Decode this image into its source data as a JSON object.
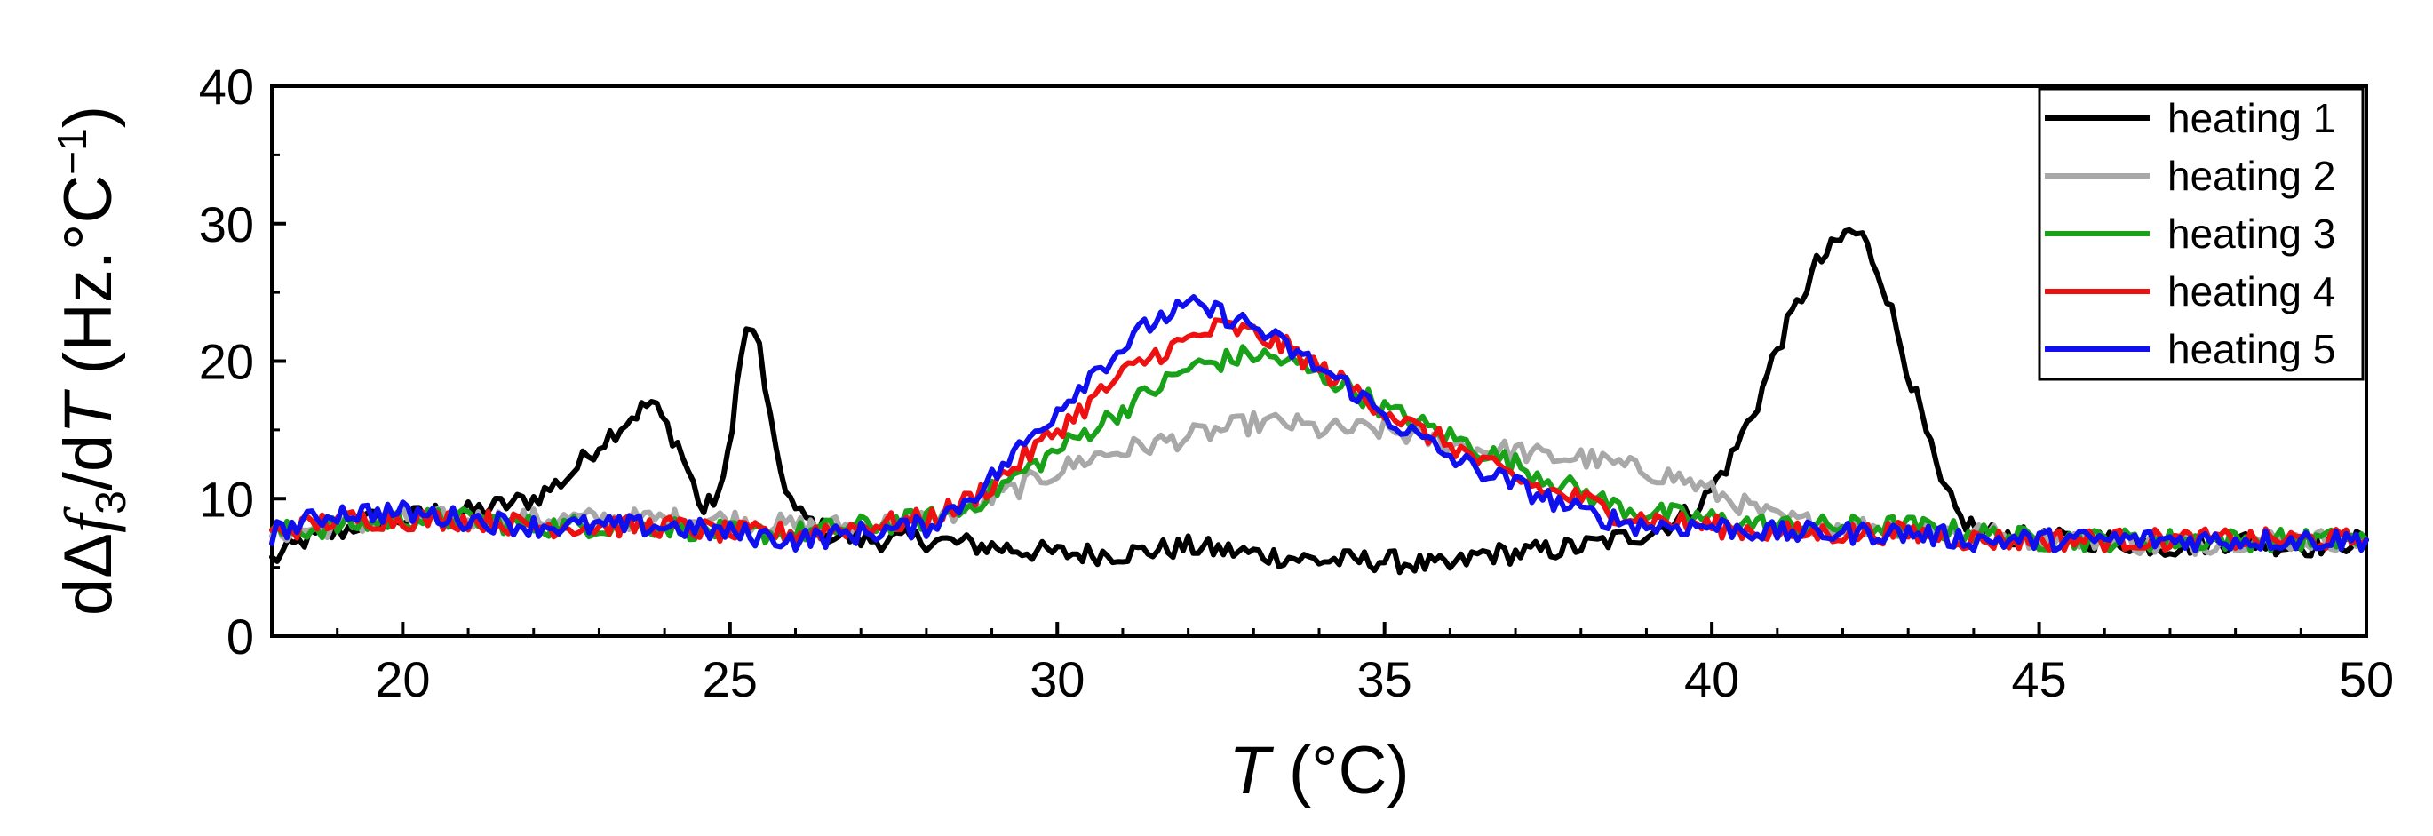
{
  "chart_data": {
    "type": "line",
    "xlabel": {
      "symbol": "T",
      "unit": "(°C)"
    },
    "ylabel": {
      "text": "dΔf3/dT (Hz.°C−1)",
      "parts": {
        "d1": "d",
        "delta": "Δ",
        "f": "f",
        "sub": "3",
        "slash": "/d",
        "T": "T",
        "unit": " (Hz.°C",
        "sup": "−1",
        "close": ")"
      }
    },
    "xlim": [
      18,
      50
    ],
    "ylim": [
      0,
      40
    ],
    "xticks": [
      20,
      25,
      30,
      35,
      40,
      45,
      50
    ],
    "yticks": [
      0,
      10,
      20,
      30,
      40
    ],
    "legend_position": "top-right",
    "series": [
      {
        "name": "heating 1",
        "color": "#000000",
        "points": [
          [
            18,
            5.5
          ],
          [
            18.5,
            7
          ],
          [
            19,
            7.5
          ],
          [
            19.5,
            8.5
          ],
          [
            20,
            8.5
          ],
          [
            20.5,
            9
          ],
          [
            21,
            9
          ],
          [
            21.5,
            9.5
          ],
          [
            22,
            10
          ],
          [
            22.5,
            11.5
          ],
          [
            23,
            14
          ],
          [
            23.5,
            16
          ],
          [
            23.8,
            17
          ],
          [
            24.2,
            14
          ],
          [
            24.6,
            9
          ],
          [
            24.9,
            11
          ],
          [
            25.1,
            18
          ],
          [
            25.25,
            22.5
          ],
          [
            25.45,
            21
          ],
          [
            25.7,
            13
          ],
          [
            26,
            9
          ],
          [
            26.5,
            7.5
          ],
          [
            27,
            7
          ],
          [
            28,
            7
          ],
          [
            29,
            6.5
          ],
          [
            30,
            6
          ],
          [
            31,
            6
          ],
          [
            32,
            6.5
          ],
          [
            33,
            6
          ],
          [
            34,
            5.5
          ],
          [
            35,
            5.5
          ],
          [
            36,
            5
          ],
          [
            36.5,
            6
          ],
          [
            37,
            6
          ],
          [
            38,
            6.5
          ],
          [
            38.5,
            7
          ],
          [
            39,
            7.5
          ],
          [
            39.5,
            8.5
          ],
          [
            39.9,
            10
          ],
          [
            40.3,
            13
          ],
          [
            40.7,
            17
          ],
          [
            41,
            21
          ],
          [
            41.3,
            24
          ],
          [
            41.6,
            27
          ],
          [
            41.9,
            28.5
          ],
          [
            42.1,
            29.5
          ],
          [
            42.3,
            29
          ],
          [
            42.6,
            26
          ],
          [
            42.9,
            21
          ],
          [
            43.2,
            16
          ],
          [
            43.5,
            11
          ],
          [
            43.8,
            8.5
          ],
          [
            44.2,
            7.5
          ],
          [
            45,
            7
          ],
          [
            46,
            7
          ],
          [
            47,
            6.5
          ],
          [
            48,
            7
          ],
          [
            49,
            6.5
          ],
          [
            50,
            7
          ]
        ]
      },
      {
        "name": "heating 2",
        "color": "#a8a8a8",
        "points": [
          [
            18,
            7.5
          ],
          [
            19,
            8
          ],
          [
            20,
            8.5
          ],
          [
            21,
            8.5
          ],
          [
            22,
            8.5
          ],
          [
            23,
            8.5
          ],
          [
            24,
            8.5
          ],
          [
            25,
            8.5
          ],
          [
            26,
            8
          ],
          [
            27,
            8
          ],
          [
            28,
            8.5
          ],
          [
            28.5,
            9
          ],
          [
            29,
            10
          ],
          [
            29.5,
            11
          ],
          [
            30,
            12
          ],
          [
            30.5,
            13
          ],
          [
            31,
            13.5
          ],
          [
            31.5,
            14
          ],
          [
            32,
            14.5
          ],
          [
            32.5,
            15
          ],
          [
            33,
            15.5
          ],
          [
            33.5,
            15.5
          ],
          [
            34,
            15
          ],
          [
            34.5,
            15
          ],
          [
            35,
            15
          ],
          [
            35.5,
            14.5
          ],
          [
            36,
            14
          ],
          [
            36.5,
            13.5
          ],
          [
            37,
            13.5
          ],
          [
            37.5,
            13
          ],
          [
            38,
            13
          ],
          [
            38.5,
            12.5
          ],
          [
            39,
            12
          ],
          [
            39.5,
            11.5
          ],
          [
            40,
            10.5
          ],
          [
            40.5,
            9.5
          ],
          [
            41,
            8.5
          ],
          [
            42,
            8
          ],
          [
            43,
            8
          ],
          [
            44,
            7.5
          ],
          [
            45,
            7
          ],
          [
            46,
            7
          ],
          [
            47,
            6.5
          ],
          [
            48,
            7
          ],
          [
            49,
            7
          ],
          [
            50,
            7
          ]
        ]
      },
      {
        "name": "heating 3",
        "color": "#1aa11a",
        "points": [
          [
            18,
            7.5
          ],
          [
            19,
            8
          ],
          [
            20,
            8.5
          ],
          [
            21,
            8.5
          ],
          [
            22,
            8
          ],
          [
            23,
            8
          ],
          [
            24,
            8
          ],
          [
            25,
            7.5
          ],
          [
            26,
            7.5
          ],
          [
            27,
            8
          ],
          [
            28,
            8.5
          ],
          [
            28.5,
            9
          ],
          [
            29,
            10.5
          ],
          [
            29.5,
            12
          ],
          [
            30,
            13.5
          ],
          [
            30.5,
            15
          ],
          [
            31,
            16.5
          ],
          [
            31.5,
            18
          ],
          [
            32,
            19.5
          ],
          [
            32.5,
            20
          ],
          [
            33,
            20.5
          ],
          [
            33.5,
            20
          ],
          [
            34,
            19
          ],
          [
            34.5,
            18
          ],
          [
            35,
            16.5
          ],
          [
            35.5,
            15.5
          ],
          [
            36,
            14.5
          ],
          [
            36.5,
            13.5
          ],
          [
            37,
            12.5
          ],
          [
            37.5,
            11.5
          ],
          [
            38,
            10.5
          ],
          [
            38.5,
            9.5
          ],
          [
            39,
            9
          ],
          [
            40,
            8.5
          ],
          [
            41,
            8
          ],
          [
            42,
            8
          ],
          [
            43,
            8
          ],
          [
            44,
            7.5
          ],
          [
            45,
            7
          ],
          [
            46,
            7
          ],
          [
            47,
            7
          ],
          [
            48,
            7
          ],
          [
            49,
            7
          ],
          [
            50,
            7
          ]
        ]
      },
      {
        "name": "heating 4",
        "color": "#ee1111",
        "points": [
          [
            18,
            7.5
          ],
          [
            19,
            8.5
          ],
          [
            20,
            8.5
          ],
          [
            21,
            8.5
          ],
          [
            22,
            8
          ],
          [
            23,
            8
          ],
          [
            24,
            8
          ],
          [
            25,
            7.5
          ],
          [
            26,
            7.5
          ],
          [
            27,
            8
          ],
          [
            28,
            8.5
          ],
          [
            28.5,
            9.5
          ],
          [
            29,
            11
          ],
          [
            29.5,
            13
          ],
          [
            30,
            15
          ],
          [
            30.5,
            17
          ],
          [
            31,
            19
          ],
          [
            31.5,
            20.5
          ],
          [
            32,
            21.5
          ],
          [
            32.5,
            22.5
          ],
          [
            33,
            22
          ],
          [
            33.5,
            21
          ],
          [
            34,
            19.5
          ],
          [
            34.5,
            18
          ],
          [
            35,
            16.5
          ],
          [
            35.5,
            15
          ],
          [
            36,
            14
          ],
          [
            36.5,
            12.5
          ],
          [
            37,
            11.5
          ],
          [
            37.5,
            10.5
          ],
          [
            38,
            10
          ],
          [
            38.5,
            9
          ],
          [
            39,
            8.5
          ],
          [
            40,
            8
          ],
          [
            41,
            7.5
          ],
          [
            42,
            7.5
          ],
          [
            43,
            7.5
          ],
          [
            44,
            7
          ],
          [
            45,
            7
          ],
          [
            46,
            7
          ],
          [
            47,
            7
          ],
          [
            48,
            7
          ],
          [
            49,
            7
          ],
          [
            50,
            7
          ]
        ]
      },
      {
        "name": "heating 5",
        "color": "#1010ee",
        "points": [
          [
            18,
            7.5
          ],
          [
            19,
            9
          ],
          [
            20,
            9
          ],
          [
            21,
            8.5
          ],
          [
            22,
            8
          ],
          [
            23,
            8
          ],
          [
            24,
            8
          ],
          [
            25,
            7.5
          ],
          [
            26,
            7
          ],
          [
            27,
            7.5
          ],
          [
            28,
            8
          ],
          [
            28.5,
            9.5
          ],
          [
            29,
            11.5
          ],
          [
            29.5,
            14
          ],
          [
            30,
            16.5
          ],
          [
            30.5,
            19
          ],
          [
            31,
            21
          ],
          [
            31.5,
            23
          ],
          [
            32,
            24
          ],
          [
            32.5,
            23.5
          ],
          [
            33,
            22.5
          ],
          [
            33.5,
            21
          ],
          [
            34,
            19.5
          ],
          [
            34.5,
            18
          ],
          [
            35,
            16
          ],
          [
            35.5,
            14.5
          ],
          [
            36,
            13
          ],
          [
            36.5,
            12
          ],
          [
            37,
            11
          ],
          [
            37.5,
            10
          ],
          [
            38,
            9
          ],
          [
            38.5,
            8.5
          ],
          [
            39,
            8
          ],
          [
            40,
            8
          ],
          [
            41,
            7.5
          ],
          [
            42,
            7.5
          ],
          [
            43,
            7.5
          ],
          [
            44,
            7
          ],
          [
            45,
            7
          ],
          [
            46,
            7
          ],
          [
            47,
            7
          ],
          [
            48,
            7
          ],
          [
            49,
            7
          ],
          [
            50,
            7
          ]
        ]
      }
    ]
  }
}
